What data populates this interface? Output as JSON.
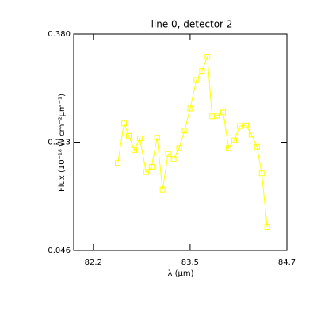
{
  "chart_data": {
    "type": "line",
    "title": "line 0, detector 2",
    "xlabel": "λ (µm)",
    "ylabel": "Flux (10⁻¹⁸ W cm⁻²µm⁻¹)",
    "x": [
      82.55,
      82.63,
      82.69,
      82.76,
      82.83,
      82.91,
      82.98,
      83.05,
      83.12,
      83.19,
      83.26,
      83.33,
      83.4,
      83.47,
      83.55,
      83.62,
      83.69,
      83.75,
      83.81,
      83.89,
      83.96,
      84.03,
      84.1,
      84.18,
      84.25,
      84.32,
      84.38,
      84.45
    ],
    "series": [
      {
        "name": "line 0",
        "color": "#ffff00",
        "values": [
          0.181,
          0.242,
          0.223,
          0.201,
          0.219,
          0.167,
          0.175,
          0.22,
          0.14,
          0.195,
          0.187,
          0.204,
          0.231,
          0.265,
          0.309,
          0.323,
          0.345,
          0.253,
          0.254,
          0.259,
          0.204,
          0.216,
          0.238,
          0.239,
          0.225,
          0.206,
          0.165,
          0.082
        ]
      }
    ],
    "xlim": [
      81.99,
      84.7
    ],
    "xticks": [
      {
        "value": 82.24,
        "label": "82.2"
      },
      {
        "value": 83.47,
        "label": "83.5"
      },
      {
        "value": 84.7,
        "label": "84.7"
      }
    ],
    "ylim": [
      0.046,
      0.38
    ],
    "yticks": [
      0.046,
      0.213,
      {
        "value": 0.38,
        "label": "0.380"
      }
    ]
  }
}
